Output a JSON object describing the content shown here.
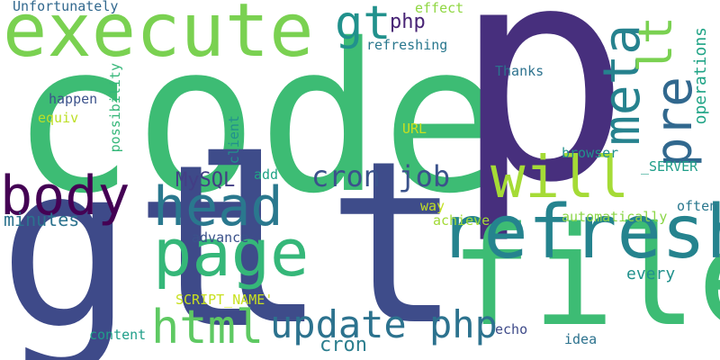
{
  "words": [
    {
      "text": "code",
      "color": "#3dbc74",
      "rotate": false
    },
    {
      "text": "p",
      "color": "#472f7d",
      "rotate": false
    },
    {
      "text": "gt",
      "color": "#3e4a89",
      "rotate": false
    },
    {
      "text": "lt",
      "color": "#3e4c8a",
      "rotate": false
    },
    {
      "text": "file",
      "color": "#3dbc74",
      "rotate": false
    },
    {
      "text": "refresh",
      "color": "#25838e",
      "rotate": false
    },
    {
      "text": "execute",
      "color": "#7ad151",
      "rotate": false
    },
    {
      "text": "page",
      "color": "#35b779",
      "rotate": false
    },
    {
      "text": "head",
      "color": "#2a788e",
      "rotate": false
    },
    {
      "text": "body",
      "color": "#440154",
      "rotate": false
    },
    {
      "text": "will",
      "color": "#a5db36",
      "rotate": false
    },
    {
      "text": "pre",
      "color": "#31688e",
      "rotate": true
    },
    {
      "text": "meta",
      "color": "#26828e",
      "rotate": true
    },
    {
      "text": "gt",
      "color": "#21918c",
      "rotate": false
    },
    {
      "text": "lt",
      "color": "#7ad151",
      "rotate": true
    },
    {
      "text": "html",
      "color": "#5ec962",
      "rotate": false
    },
    {
      "text": "update php",
      "color": "#2c728e",
      "rotate": false
    },
    {
      "text": "cron job",
      "color": "#3b528b",
      "rotate": false
    },
    {
      "text": "cron",
      "color": "#2c7e8e",
      "rotate": false
    },
    {
      "text": "php",
      "color": "#482475",
      "rotate": false
    },
    {
      "text": "MySQL",
      "color": "#433e85",
      "rotate": false
    },
    {
      "text": "minutes",
      "color": "#2c728e",
      "rotate": false
    },
    {
      "text": "operations",
      "color": "#20a486",
      "rotate": true
    },
    {
      "text": "every",
      "color": "#21918c",
      "rotate": false
    },
    {
      "text": "refreshing",
      "color": "#2a788e",
      "rotate": false
    },
    {
      "text": "Unfortunately",
      "color": "#31688e",
      "rotate": false
    },
    {
      "text": "effect",
      "color": "#90d743",
      "rotate": false
    },
    {
      "text": "Thanks",
      "color": "#2c728e",
      "rotate": false
    },
    {
      "text": "happen",
      "color": "#3b528b",
      "rotate": false
    },
    {
      "text": "equiv",
      "color": "#bddf26",
      "rotate": false
    },
    {
      "text": "possibility",
      "color": "#35b779",
      "rotate": true
    },
    {
      "text": "URL",
      "color": "#c8e020",
      "rotate": false
    },
    {
      "text": "client",
      "color": "#21918c",
      "rotate": true
    },
    {
      "text": "browser",
      "color": "#21918c",
      "rotate": false
    },
    {
      "text": "_SERVER",
      "color": "#1f9e89",
      "rotate": false
    },
    {
      "text": "add",
      "color": "#20a486",
      "rotate": false
    },
    {
      "text": "way",
      "color": "#c2df23",
      "rotate": false
    },
    {
      "text": "achieve",
      "color": "#a2da37",
      "rotate": false
    },
    {
      "text": "automatically",
      "color": "#8bd646",
      "rotate": false
    },
    {
      "text": "often",
      "color": "#2a788e",
      "rotate": false
    },
    {
      "text": "advance",
      "color": "#3b528b",
      "rotate": false
    },
    {
      "text": "SCRIPT_NAME'",
      "color": "#c8e020",
      "rotate": false
    },
    {
      "text": "content",
      "color": "#1f9e89",
      "rotate": false
    },
    {
      "text": "echo",
      "color": "#3e4a89",
      "rotate": false
    },
    {
      "text": "idea",
      "color": "#2c728e",
      "rotate": false
    }
  ]
}
